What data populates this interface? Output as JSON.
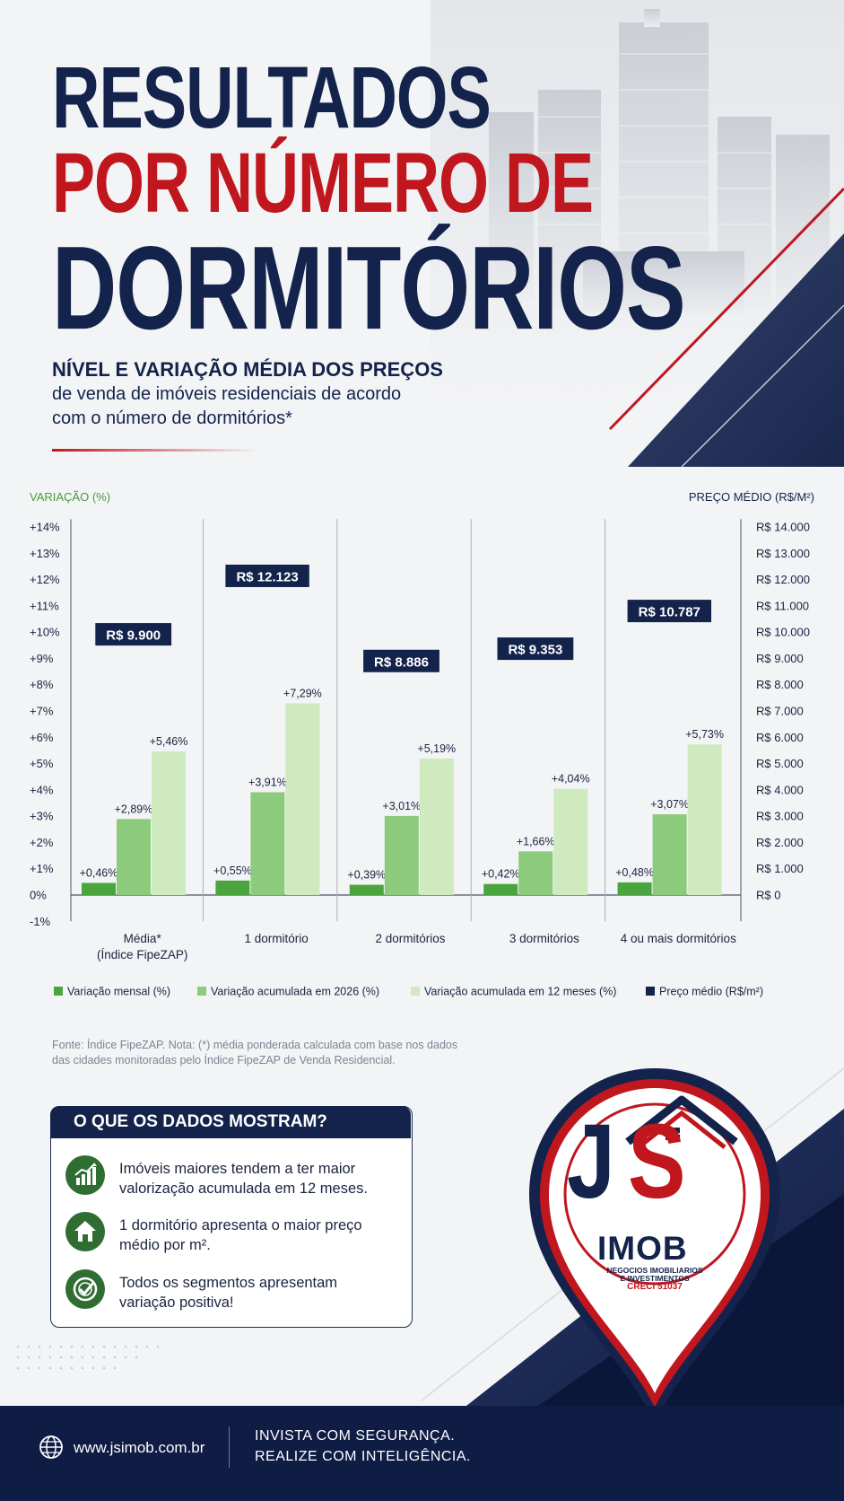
{
  "title": {
    "line1": "RESULTADOS",
    "line2": "POR NÚMERO DE",
    "line3": "DORMITÓRIOS"
  },
  "subtitle": {
    "bold": "NÍVEL E VARIAÇÃO MÉDIA DOS PREÇOS",
    "line1": "de venda de imóveis residenciais de acordo",
    "line2": "com o número de dormitórios*"
  },
  "colors": {
    "navy": "#14234b",
    "red": "#c0161e",
    "green_dark": "#4aa53e",
    "green_mid": "#8dcb7c",
    "green_light": "#cfeabf"
  },
  "chart_data": {
    "type": "bar",
    "left_axis_label": "VARIAÇÃO (%)",
    "right_axis_label": "PREÇO MÉDIO (R$/M²)",
    "left_axis_range": [
      -1,
      14
    ],
    "right_axis_range": [
      0,
      14000
    ],
    "left_ticks": [
      "+14%",
      "+13%",
      "+12%",
      "+11%",
      "+10%",
      "+9%",
      "+8%",
      "+7%",
      "+6%",
      "+5%",
      "+4%",
      "+3%",
      "+2%",
      "+1%",
      "0%",
      "-1%"
    ],
    "right_ticks": [
      "R$ 14.000",
      "R$ 13.000",
      "R$ 12.000",
      "R$ 11.000",
      "R$ 10.000",
      "R$ 9.000",
      "R$ 8.000",
      "R$ 7.000",
      "R$ 6.000",
      "R$ 5.000",
      "R$ 4.000",
      "R$ 3.000",
      "R$ 2.000",
      "R$ 1.000",
      "R$ 0"
    ],
    "categories": [
      [
        "Média*",
        "(Índice FipeZAP)"
      ],
      [
        "1 dormitório"
      ],
      [
        "2 dormitórios"
      ],
      [
        "3 dormitórios"
      ],
      [
        "4 ou mais dormitórios"
      ]
    ],
    "series": [
      {
        "name": "Variação mensal (%)",
        "values": [
          0.46,
          0.55,
          0.39,
          0.42,
          0.48
        ],
        "labels": [
          "+0,46%",
          "+0,55%",
          "+0,39%",
          "+0,42%",
          "+0,48%"
        ],
        "color": "#4aa53e"
      },
      {
        "name": "Variação acumulada em 2026 (%)",
        "values": [
          2.89,
          3.91,
          3.01,
          1.66,
          3.07
        ],
        "labels": [
          "+2,89%",
          "+3,91%",
          "+3,01%",
          "+1,66%",
          "+3,07%"
        ],
        "color": "#8dcb7c"
      },
      {
        "name": "Variação acumulada em 12 meses (%)",
        "values": [
          5.46,
          7.29,
          5.19,
          4.04,
          5.73
        ],
        "labels": [
          "+5,46%",
          "+7,29%",
          "+5,19%",
          "+4,04%",
          "+5,73%"
        ],
        "color": "#cfeabf"
      }
    ],
    "price_series": {
      "name": "Preço médio (R$/m²)",
      "values": [
        9900,
        12123,
        8886,
        9353,
        10787
      ],
      "labels": [
        "R$ 9.900",
        "R$ 12.123",
        "R$ 8.886",
        "R$ 9.353",
        "R$ 10.787"
      ],
      "color": "#14234b"
    },
    "legend_position": "bottom"
  },
  "source": {
    "line1": "Fonte: Índice FipeZAP.  Nota: (*) média ponderada calculada com base nos dados",
    "line2": "das cidades monitoradas pelo Índice FipeZAP de Venda Residencial."
  },
  "insights": {
    "title": "O QUE OS DADOS MOSTRAM?",
    "items": [
      {
        "icon": "growth-chart-icon",
        "line1": "Imóveis maiores tendem a ter maior",
        "line2": "valorização acumulada em 12 meses."
      },
      {
        "icon": "house-icon",
        "line1": "1 dormitório apresenta o maior preço",
        "line2": "médio por m²."
      },
      {
        "icon": "target-check-icon",
        "line1": "Todos os segmentos apresentam",
        "line2": "variação positiva!"
      }
    ]
  },
  "logo": {
    "j": "J",
    "s": "S",
    "name": "IMOB",
    "tagline1": "NEGOCIOS IMOBILIARIOS",
    "tagline2": "E INVESTIMENTOS",
    "creci": "CRECI 51037"
  },
  "footer": {
    "website": "www.jsimob.com.br",
    "slogan1": "INVISTA COM SEGURANÇA.",
    "slogan2": "REALIZE COM INTELIGÊNCIA."
  }
}
